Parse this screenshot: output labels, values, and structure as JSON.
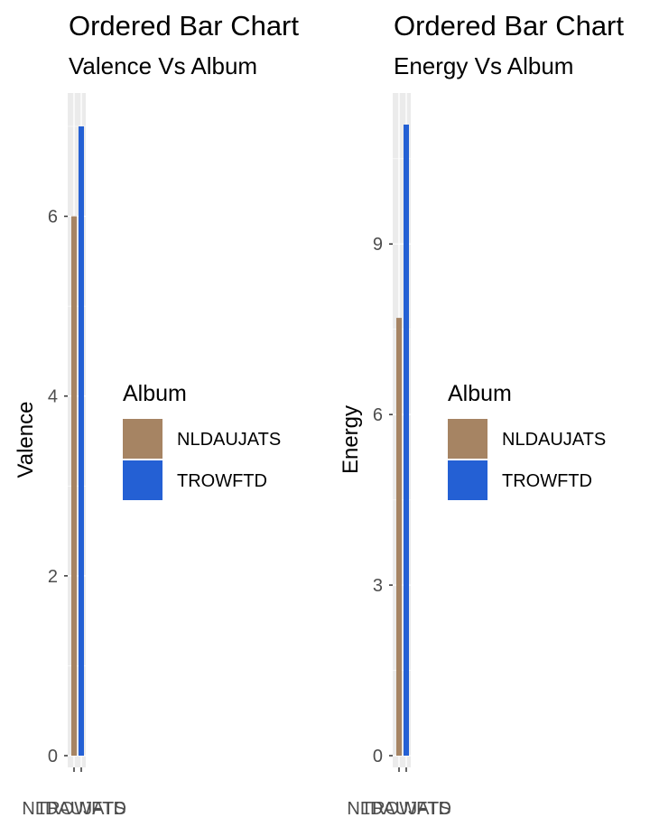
{
  "chart_data": [
    {
      "type": "bar",
      "title": "Ordered Bar Chart",
      "subtitle": "Valence Vs Album",
      "xlabel": "",
      "ylabel": "Valence",
      "categories": [
        "NLDAUJATS",
        "TROWFTD"
      ],
      "values": [
        6.0,
        7.0
      ],
      "colors": [
        "#A68463",
        "#2460D4"
      ],
      "ylim": [
        0,
        7
      ],
      "yticks": [
        0,
        2,
        4,
        6
      ],
      "grid": true,
      "legend": {
        "title": "Album",
        "position": "right",
        "entries": [
          "NLDAUJATS",
          "TROWFTD"
        ]
      }
    },
    {
      "type": "bar",
      "title": "Ordered Bar Chart",
      "subtitle": "Energy Vs Album",
      "xlabel": "",
      "ylabel": "Energy",
      "categories": [
        "NLDAUJATS",
        "TROWFTD"
      ],
      "values": [
        7.7,
        11.1
      ],
      "colors": [
        "#A68463",
        "#2460D4"
      ],
      "ylim": [
        0,
        11.1
      ],
      "yticks": [
        0,
        3,
        6,
        9
      ],
      "grid": true,
      "legend": {
        "title": "Album",
        "position": "right",
        "entries": [
          "NLDAUJATS",
          "TROWFTD"
        ]
      }
    }
  ]
}
